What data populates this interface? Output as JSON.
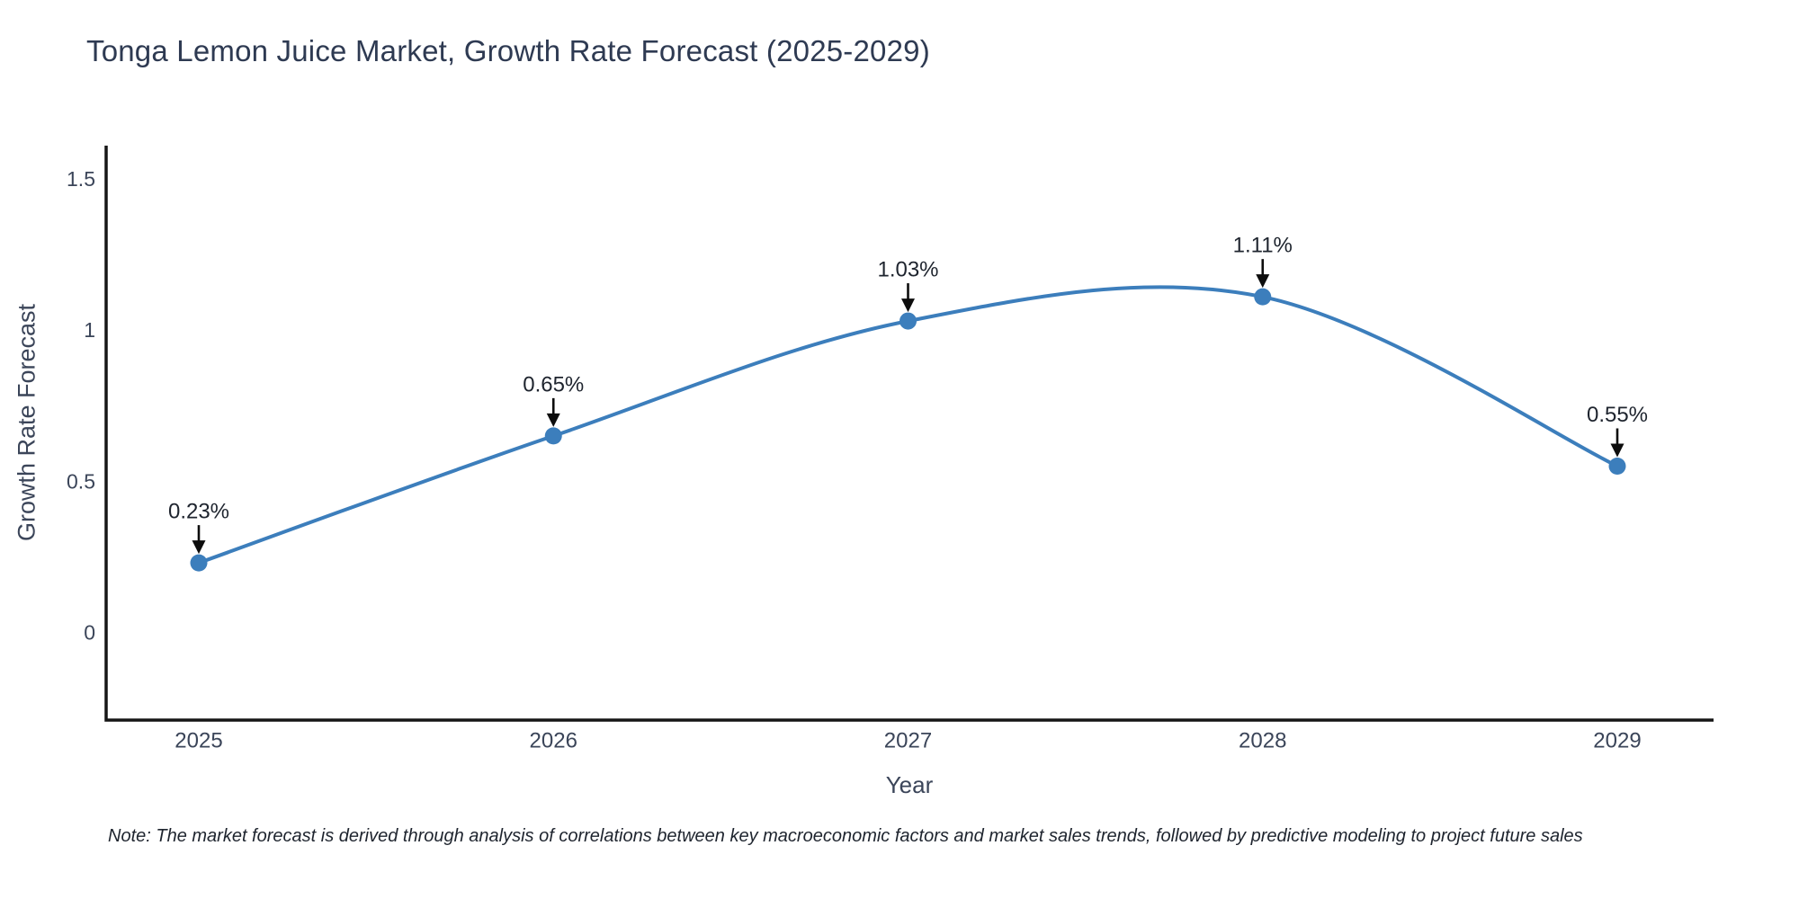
{
  "title": "Tonga Lemon Juice Market, Growth Rate Forecast (2025-2029)",
  "note": "Note: The market forecast is derived through analysis of correlations between key macroeconomic factors and market sales trends, followed by predictive modeling to project future sales",
  "colors": {
    "accent": "#3c7ebc",
    "axis_line": "#161616",
    "tick_label": "#3b4559",
    "title_color": "#2e3a52",
    "annotation": "#1e242e",
    "arrow": "#0d0d0d",
    "background": "#ffffff"
  },
  "chart_data": {
    "type": "line",
    "line_shape": "spline",
    "title": "Tonga Lemon Juice Market, Growth Rate Forecast (2025-2029)",
    "xlabel": "Year",
    "ylabel": "Growth Rate Forecast",
    "categories": [
      "2025",
      "2026",
      "2027",
      "2028",
      "2029"
    ],
    "values": [
      0.23,
      0.65,
      1.03,
      1.11,
      0.55
    ],
    "point_labels": [
      "0.23%",
      "0.65%",
      "1.03%",
      "1.11%",
      "0.55%"
    ],
    "yticks": [
      "0",
      "0.5",
      "1",
      "1.5"
    ],
    "ytick_values": [
      0,
      0.5,
      1,
      1.5
    ],
    "ylim": [
      -0.29,
      1.61
    ],
    "grid": false,
    "legend_position": "none",
    "annotations_have_arrows": true
  }
}
